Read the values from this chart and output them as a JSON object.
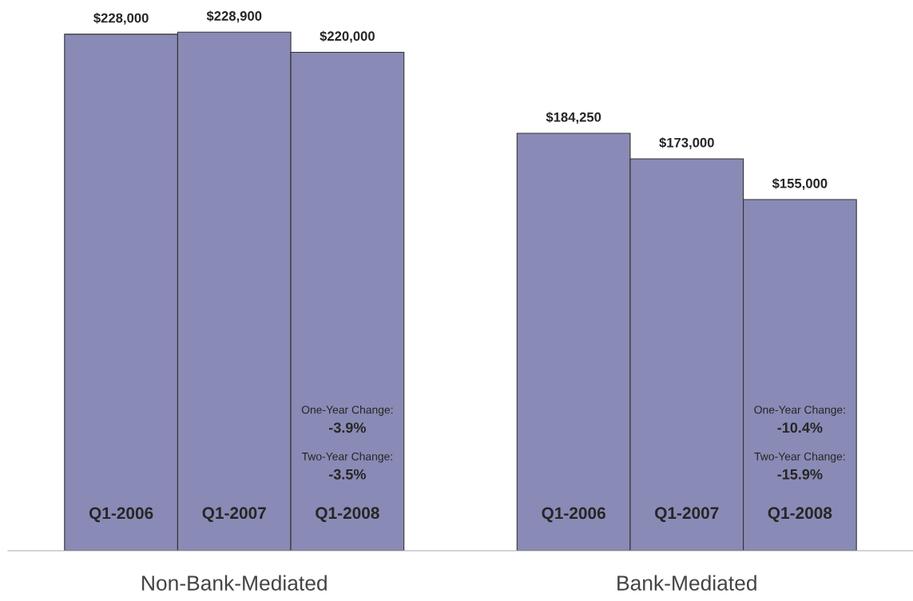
{
  "chart_data": {
    "type": "bar",
    "categories": [
      "Non-Bank-Mediated",
      "Bank-Mediated"
    ],
    "series": [
      {
        "name": "Q1-2006",
        "color": "#8a8ab6",
        "values": [
          228000,
          184250
        ],
        "value_labels": [
          "$228,000",
          "$184,250"
        ]
      },
      {
        "name": "Q1-2007",
        "color": "#8a8ab6",
        "values": [
          228900,
          173000
        ],
        "value_labels": [
          "$228,900",
          "$173,000"
        ]
      },
      {
        "name": "Q1-2008",
        "color": "#8a8ab6",
        "values": [
          220000,
          155000
        ],
        "value_labels": [
          "$220,000",
          "$155,000"
        ]
      }
    ],
    "annotations": [
      "One-Year Change:",
      "-3.9%",
      "Two-Year Change:",
      "-3.5%",
      "One-Year Change:",
      "-10.4%",
      "Two-Year Change:",
      "-15.9%"
    ],
    "legend": false,
    "grid": false
  }
}
